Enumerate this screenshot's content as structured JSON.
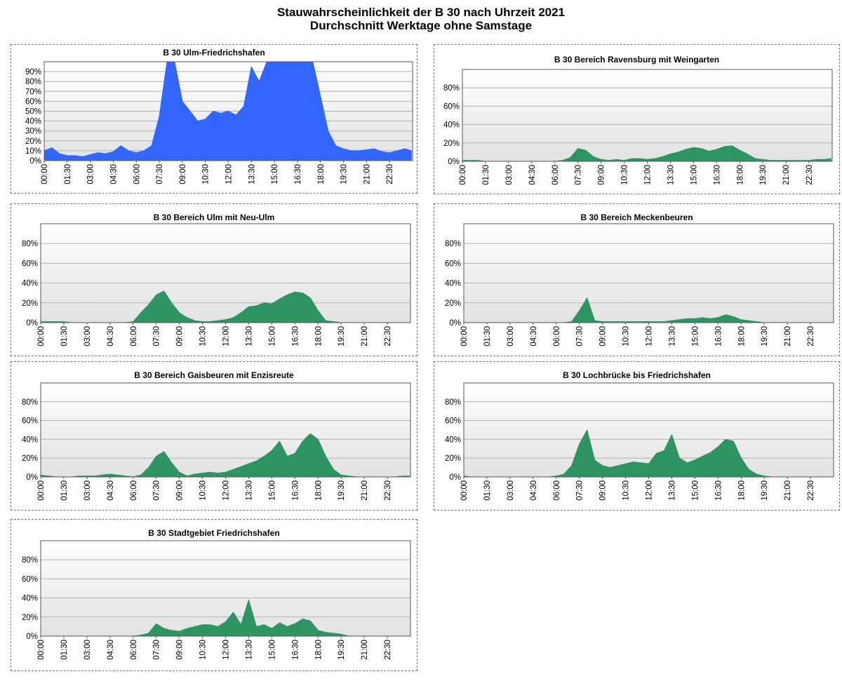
{
  "title_line1": "Stauwahrscheinlichkeit der B 30 nach Uhrzeit 2021",
  "title_line2": "Durchschnitt Werktage ohne Samstage",
  "colors": {
    "blue": "#3366ff",
    "green": "#2e9462",
    "frame": "#555555",
    "grid": "#b0b0b0"
  },
  "chart_data": [
    {
      "type": "area",
      "title": "B 30 Ulm-Friedrichshafen",
      "color": "#3366ff",
      "ylim": [
        0,
        100
      ],
      "y_ticks": [
        "0%",
        "10%",
        "20%",
        "30%",
        "40%",
        "50%",
        "60%",
        "70%",
        "80%",
        "90%"
      ],
      "x_ticks": [
        "00:00",
        "01:30",
        "03:00",
        "04:30",
        "06:00",
        "07:30",
        "09:00",
        "10:30",
        "12:00",
        "13:30",
        "15:00",
        "16:30",
        "18:00",
        "19:30",
        "21:00",
        "22:30"
      ],
      "x": [
        "00:00",
        "00:30",
        "01:00",
        "01:30",
        "02:00",
        "02:30",
        "03:00",
        "03:30",
        "04:00",
        "04:30",
        "05:00",
        "05:30",
        "06:00",
        "06:30",
        "07:00",
        "07:30",
        "08:00",
        "08:30",
        "09:00",
        "09:30",
        "10:00",
        "10:30",
        "11:00",
        "11:30",
        "12:00",
        "12:30",
        "13:00",
        "13:30",
        "14:00",
        "14:30",
        "15:00",
        "15:30",
        "16:00",
        "16:30",
        "17:00",
        "17:30",
        "18:00",
        "18:30",
        "19:00",
        "19:30",
        "20:00",
        "20:30",
        "21:00",
        "21:30",
        "22:00",
        "22:30",
        "23:00",
        "23:30",
        "23:55"
      ],
      "values": [
        10,
        13,
        7,
        5,
        5,
        4,
        6,
        8,
        7,
        9,
        15,
        10,
        8,
        10,
        15,
        45,
        100,
        100,
        60,
        50,
        40,
        42,
        50,
        48,
        50,
        46,
        55,
        95,
        80,
        100,
        100,
        100,
        100,
        100,
        100,
        100,
        65,
        30,
        15,
        12,
        10,
        10,
        11,
        12,
        9,
        8,
        10,
        12,
        10
      ]
    },
    {
      "type": "area",
      "title": "B 30 Bereich Ravensburg mit Weingarten",
      "color": "#2e9462",
      "ylim": [
        0,
        100
      ],
      "y_ticks": [
        "0%",
        "20%",
        "40%",
        "60%",
        "80%"
      ],
      "x_ticks": [
        "00:00",
        "01:30",
        "03:00",
        "04:30",
        "06:00",
        "07:30",
        "09:00",
        "10:30",
        "12:00",
        "13:30",
        "15:00",
        "16:30",
        "18:00",
        "19:30",
        "21:00",
        "22:30"
      ],
      "x": [
        "00:00",
        "00:30",
        "01:00",
        "01:30",
        "02:00",
        "02:30",
        "03:00",
        "03:30",
        "04:00",
        "04:30",
        "05:00",
        "05:30",
        "06:00",
        "06:30",
        "07:00",
        "07:30",
        "08:00",
        "08:30",
        "09:00",
        "09:30",
        "10:00",
        "10:30",
        "11:00",
        "11:30",
        "12:00",
        "12:30",
        "13:00",
        "13:30",
        "14:00",
        "14:30",
        "15:00",
        "15:30",
        "16:00",
        "16:30",
        "17:00",
        "17:30",
        "18:00",
        "18:30",
        "19:00",
        "19:30",
        "20:00",
        "20:30",
        "21:00",
        "21:30",
        "22:00",
        "22:30",
        "23:00",
        "23:30",
        "23:55"
      ],
      "values": [
        1,
        1,
        1,
        0,
        0,
        0,
        0,
        0,
        0,
        0,
        0,
        0,
        0,
        1,
        4,
        14,
        12,
        5,
        2,
        1,
        2,
        1,
        3,
        3,
        2,
        3,
        5,
        8,
        10,
        13,
        15,
        14,
        11,
        13,
        16,
        17,
        12,
        8,
        3,
        2,
        1,
        1,
        1,
        1,
        1,
        1,
        2,
        2,
        3
      ]
    },
    {
      "type": "area",
      "title": "B 30 Bereich Ulm mit Neu-Ulm",
      "color": "#2e9462",
      "ylim": [
        0,
        100
      ],
      "y_ticks": [
        "0%",
        "20%",
        "40%",
        "60%",
        "80%"
      ],
      "x_ticks": [
        "00:00",
        "01:30",
        "03:00",
        "04:30",
        "06:00",
        "07:30",
        "09:00",
        "10:30",
        "12:00",
        "13:30",
        "15:00",
        "16:30",
        "18:00",
        "19:30",
        "21:00",
        "22:30"
      ],
      "x": [
        "00:00",
        "00:30",
        "01:00",
        "01:30",
        "02:00",
        "02:30",
        "03:00",
        "03:30",
        "04:00",
        "04:30",
        "05:00",
        "05:30",
        "06:00",
        "06:30",
        "07:00",
        "07:30",
        "08:00",
        "08:30",
        "09:00",
        "09:30",
        "10:00",
        "10:30",
        "11:00",
        "11:30",
        "12:00",
        "12:30",
        "13:00",
        "13:30",
        "14:00",
        "14:30",
        "15:00",
        "15:30",
        "16:00",
        "16:30",
        "17:00",
        "17:30",
        "18:00",
        "18:30",
        "19:00",
        "19:30",
        "20:00",
        "20:30",
        "21:00",
        "21:30",
        "22:00",
        "22:30",
        "23:00",
        "23:30",
        "23:55"
      ],
      "values": [
        1,
        1,
        1,
        1,
        0,
        0,
        0,
        0,
        0,
        0,
        0,
        0,
        1,
        10,
        18,
        28,
        32,
        20,
        10,
        5,
        2,
        1,
        1,
        2,
        3,
        5,
        10,
        16,
        17,
        20,
        19,
        24,
        28,
        31,
        30,
        25,
        12,
        2,
        1,
        0,
        0,
        0,
        0,
        0,
        0,
        0,
        0,
        0,
        0
      ]
    },
    {
      "type": "area",
      "title": "B 30 Bereich Meckenbeuren",
      "color": "#2e9462",
      "ylim": [
        0,
        100
      ],
      "y_ticks": [
        "0%",
        "20%",
        "40%",
        "60%",
        "80%"
      ],
      "x_ticks": [
        "00:00",
        "01:30",
        "03:00",
        "04:30",
        "06:00",
        "07:30",
        "09:00",
        "10:30",
        "12:00",
        "13:30",
        "15:00",
        "16:30",
        "18:00",
        "19:30",
        "21:00",
        "22:30"
      ],
      "x": [
        "00:00",
        "00:30",
        "01:00",
        "01:30",
        "02:00",
        "02:30",
        "03:00",
        "03:30",
        "04:00",
        "04:30",
        "05:00",
        "05:30",
        "06:00",
        "06:30",
        "07:00",
        "07:30",
        "08:00",
        "08:30",
        "09:00",
        "09:30",
        "10:00",
        "10:30",
        "11:00",
        "11:30",
        "12:00",
        "12:30",
        "13:00",
        "13:30",
        "14:00",
        "14:30",
        "15:00",
        "15:30",
        "16:00",
        "16:30",
        "17:00",
        "17:30",
        "18:00",
        "18:30",
        "19:00",
        "19:30",
        "20:00",
        "20:30",
        "21:00",
        "21:30",
        "22:00",
        "22:30",
        "23:00",
        "23:30",
        "23:55"
      ],
      "values": [
        0,
        0,
        0,
        0,
        0,
        0,
        0,
        0,
        0,
        0,
        0,
        0,
        0,
        0,
        1,
        12,
        25,
        2,
        1,
        1,
        1,
        1,
        1,
        1,
        1,
        1,
        1,
        2,
        3,
        4,
        4,
        5,
        4,
        5,
        8,
        6,
        3,
        2,
        1,
        0,
        0,
        0,
        0,
        0,
        0,
        0,
        0,
        0,
        0
      ]
    },
    {
      "type": "area",
      "title": "B 30 Bereich Gaisbeuren mit Enzisreute",
      "color": "#2e9462",
      "ylim": [
        0,
        100
      ],
      "y_ticks": [
        "0%",
        "20%",
        "40%",
        "60%",
        "80%"
      ],
      "x_ticks": [
        "00:00",
        "01:30",
        "03:00",
        "04:30",
        "06:00",
        "07:30",
        "09:00",
        "10:30",
        "12:00",
        "13:30",
        "15:00",
        "16:30",
        "18:00",
        "19:30",
        "21:00",
        "22:30"
      ],
      "x": [
        "00:00",
        "00:30",
        "01:00",
        "01:30",
        "02:00",
        "02:30",
        "03:00",
        "03:30",
        "04:00",
        "04:30",
        "05:00",
        "05:30",
        "06:00",
        "06:30",
        "07:00",
        "07:30",
        "08:00",
        "08:30",
        "09:00",
        "09:30",
        "10:00",
        "10:30",
        "11:00",
        "11:30",
        "12:00",
        "12:30",
        "13:00",
        "13:30",
        "14:00",
        "14:30",
        "15:00",
        "15:30",
        "16:00",
        "16:30",
        "17:00",
        "17:30",
        "18:00",
        "18:30",
        "19:00",
        "19:30",
        "20:00",
        "20:30",
        "21:00",
        "21:30",
        "22:00",
        "22:30",
        "23:00",
        "23:30",
        "23:55"
      ],
      "values": [
        2,
        1,
        0,
        0,
        0,
        1,
        1,
        1,
        2,
        3,
        2,
        1,
        0,
        2,
        10,
        22,
        27,
        15,
        5,
        1,
        3,
        4,
        5,
        4,
        5,
        8,
        11,
        14,
        17,
        22,
        28,
        38,
        22,
        25,
        38,
        46,
        40,
        22,
        8,
        2,
        1,
        0,
        0,
        0,
        0,
        0,
        0,
        1,
        1
      ]
    },
    {
      "type": "area",
      "title": "B 30 Lochbrücke bis Friedrichshafen",
      "color": "#2e9462",
      "ylim": [
        0,
        100
      ],
      "y_ticks": [
        "0%",
        "20%",
        "40%",
        "60%",
        "80%"
      ],
      "x_ticks": [
        "00:00",
        "01:30",
        "03:00",
        "04:30",
        "06:00",
        "07:30",
        "09:00",
        "10:30",
        "12:00",
        "13:30",
        "15:00",
        "16:30",
        "18:00",
        "19:30",
        "21:00",
        "22:30"
      ],
      "x": [
        "00:00",
        "00:30",
        "01:00",
        "01:30",
        "02:00",
        "02:30",
        "03:00",
        "03:30",
        "04:00",
        "04:30",
        "05:00",
        "05:30",
        "06:00",
        "06:30",
        "07:00",
        "07:30",
        "08:00",
        "08:30",
        "09:00",
        "09:30",
        "10:00",
        "10:30",
        "11:00",
        "11:30",
        "12:00",
        "12:30",
        "13:00",
        "13:30",
        "14:00",
        "14:30",
        "15:00",
        "15:30",
        "16:00",
        "16:30",
        "17:00",
        "17:30",
        "18:00",
        "18:30",
        "19:00",
        "19:30",
        "20:00",
        "20:30",
        "21:00",
        "21:30",
        "22:00",
        "22:30",
        "23:00",
        "23:30",
        "23:55"
      ],
      "values": [
        1,
        0,
        0,
        0,
        0,
        0,
        0,
        0,
        0,
        0,
        0,
        0,
        1,
        3,
        12,
        35,
        50,
        18,
        12,
        10,
        12,
        14,
        16,
        15,
        14,
        25,
        28,
        45,
        20,
        15,
        18,
        22,
        26,
        32,
        40,
        38,
        20,
        8,
        3,
        1,
        0,
        0,
        0,
        0,
        0,
        0,
        0,
        0,
        0
      ]
    },
    {
      "type": "area",
      "title": "B 30 Stadtgebiet Friedrichshafen",
      "color": "#2e9462",
      "ylim": [
        0,
        100
      ],
      "y_ticks": [
        "0%",
        "20%",
        "40%",
        "60%",
        "80%"
      ],
      "x_ticks": [
        "00:00",
        "01:30",
        "03:00",
        "04:30",
        "06:00",
        "07:30",
        "09:00",
        "10:30",
        "12:00",
        "13:30",
        "15:00",
        "16:30",
        "18:00",
        "19:30",
        "21:00",
        "22:30"
      ],
      "x": [
        "00:00",
        "00:30",
        "01:00",
        "01:30",
        "02:00",
        "02:30",
        "03:00",
        "03:30",
        "04:00",
        "04:30",
        "05:00",
        "05:30",
        "06:00",
        "06:30",
        "07:00",
        "07:30",
        "08:00",
        "08:30",
        "09:00",
        "09:30",
        "10:00",
        "10:30",
        "11:00",
        "11:30",
        "12:00",
        "12:30",
        "13:00",
        "13:30",
        "14:00",
        "14:30",
        "15:00",
        "15:30",
        "16:00",
        "16:30",
        "17:00",
        "17:30",
        "18:00",
        "18:30",
        "19:00",
        "19:30",
        "20:00",
        "20:30",
        "21:00",
        "21:30",
        "22:00",
        "22:30",
        "23:00",
        "23:30",
        "23:55"
      ],
      "values": [
        0,
        0,
        0,
        0,
        0,
        0,
        0,
        0,
        0,
        0,
        0,
        0,
        0,
        1,
        3,
        13,
        8,
        6,
        5,
        8,
        10,
        12,
        12,
        10,
        15,
        25,
        12,
        38,
        10,
        12,
        8,
        14,
        10,
        13,
        18,
        16,
        6,
        4,
        3,
        2,
        0,
        0,
        0,
        0,
        0,
        0,
        0,
        0,
        0
      ]
    }
  ]
}
